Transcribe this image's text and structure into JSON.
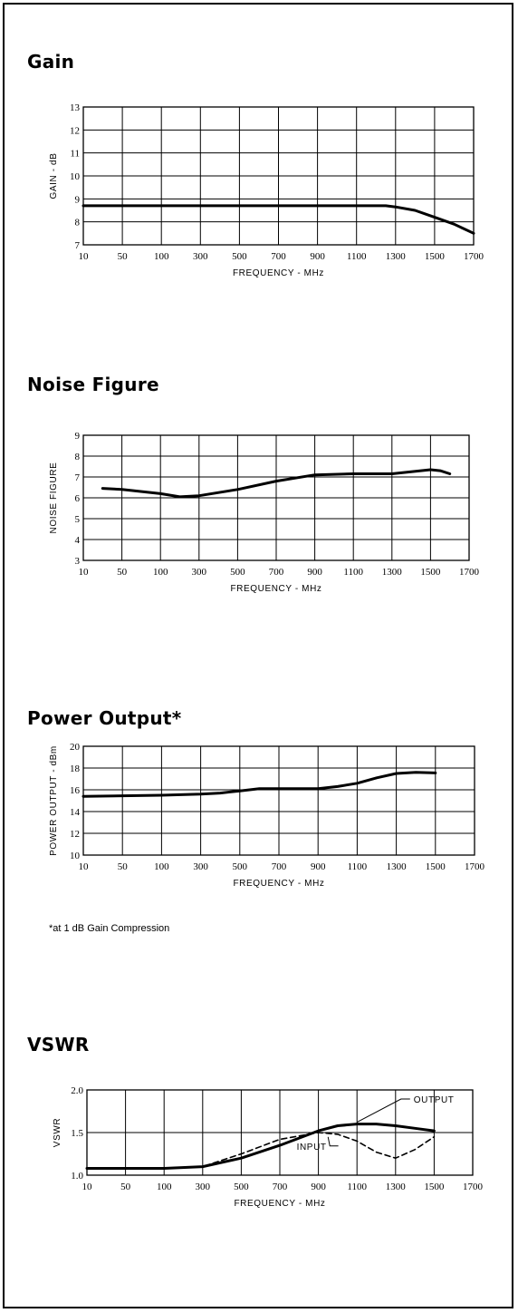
{
  "chart_data": [
    {
      "type": "line",
      "title": "Gain",
      "xlabel": "FREQUENCY - MHz",
      "ylabel": "GAIN - dB",
      "x_ticks": [
        "10",
        "50",
        "100",
        "300",
        "500",
        "700",
        "900",
        "1100",
        "1300",
        "1500",
        "1700"
      ],
      "y_ticks": [
        "7",
        "8",
        "9",
        "10",
        "11",
        "12",
        "13"
      ],
      "xlim": [
        10,
        1700
      ],
      "ylim": [
        7,
        13
      ],
      "grid": true,
      "series": [
        {
          "style": "solid",
          "x": [
            10,
            50,
            100,
            300,
            500,
            700,
            900,
            1100,
            1250,
            1300,
            1400,
            1500,
            1600,
            1700
          ],
          "y": [
            8.7,
            8.7,
            8.7,
            8.7,
            8.7,
            8.7,
            8.7,
            8.7,
            8.7,
            8.65,
            8.5,
            8.2,
            7.9,
            7.5
          ]
        }
      ]
    },
    {
      "type": "line",
      "title": "Noise Figure",
      "xlabel": "FREQUENCY - MHz",
      "ylabel": "NOISE FIGURE",
      "x_ticks": [
        "10",
        "50",
        "100",
        "300",
        "500",
        "700",
        "900",
        "1100",
        "1300",
        "1500",
        "1700"
      ],
      "y_ticks": [
        "3",
        "4",
        "5",
        "6",
        "7",
        "8",
        "9"
      ],
      "xlim": [
        10,
        1700
      ],
      "ylim": [
        3,
        9
      ],
      "grid": true,
      "series": [
        {
          "style": "solid",
          "x": [
            30,
            50,
            100,
            200,
            300,
            500,
            700,
            900,
            1100,
            1300,
            1400,
            1500,
            1550,
            1600
          ],
          "y": [
            6.45,
            6.4,
            6.2,
            6.05,
            6.1,
            6.4,
            6.8,
            7.1,
            7.15,
            7.15,
            7.25,
            7.35,
            7.3,
            7.15
          ]
        }
      ]
    },
    {
      "type": "line",
      "title": "Power Output*",
      "xlabel": "FREQUENCY - MHz",
      "ylabel": "POWER OUTPUT - dBm",
      "x_ticks": [
        "10",
        "50",
        "100",
        "300",
        "500",
        "700",
        "900",
        "1100",
        "1300",
        "1500",
        "1700"
      ],
      "y_ticks": [
        "10",
        "12",
        "14",
        "16",
        "18",
        "20"
      ],
      "xlim": [
        10,
        1700
      ],
      "ylim": [
        10,
        20
      ],
      "grid": true,
      "annotation": "*at 1 dB Gain Compression",
      "series": [
        {
          "style": "solid",
          "x": [
            10,
            100,
            300,
            400,
            500,
            600,
            700,
            900,
            1000,
            1100,
            1200,
            1300,
            1400,
            1500
          ],
          "y": [
            15.4,
            15.5,
            15.6,
            15.7,
            15.9,
            16.1,
            16.1,
            16.1,
            16.3,
            16.6,
            17.1,
            17.5,
            17.6,
            17.55
          ]
        }
      ]
    },
    {
      "type": "line",
      "title": "VSWR",
      "xlabel": "FREQUENCY - MHz",
      "ylabel": "VSWR",
      "x_ticks": [
        "10",
        "50",
        "100",
        "300",
        "500",
        "700",
        "900",
        "1100",
        "1300",
        "1500",
        "1700"
      ],
      "y_ticks": [
        "1.0",
        "1.5",
        "2.0"
      ],
      "xlim": [
        10,
        1700
      ],
      "ylim": [
        1.0,
        2.0
      ],
      "grid": true,
      "series": [
        {
          "name": "OUTPUT",
          "style": "solid",
          "x": [
            10,
            100,
            300,
            500,
            700,
            900,
            1000,
            1100,
            1200,
            1300,
            1400,
            1500
          ],
          "y": [
            1.08,
            1.08,
            1.1,
            1.2,
            1.35,
            1.52,
            1.58,
            1.6,
            1.6,
            1.58,
            1.55,
            1.52
          ]
        },
        {
          "name": "INPUT",
          "style": "dashed",
          "x": [
            10,
            100,
            300,
            500,
            700,
            900,
            1000,
            1100,
            1200,
            1300,
            1400,
            1500
          ],
          "y": [
            1.08,
            1.08,
            1.1,
            1.25,
            1.42,
            1.5,
            1.48,
            1.4,
            1.27,
            1.2,
            1.3,
            1.45
          ]
        }
      ]
    }
  ]
}
